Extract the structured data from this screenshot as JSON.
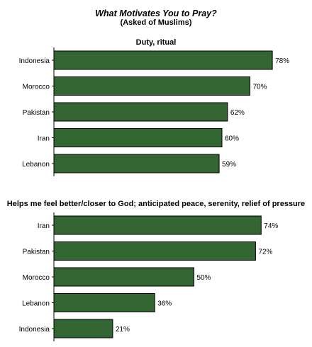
{
  "title": "What Motivates You to Pray?",
  "subtitle": "(Asked of Muslims)",
  "colors": {
    "bar": "#336633",
    "bar_stroke": "#000000",
    "axis": "#000000"
  },
  "chart_data": [
    {
      "type": "bar",
      "orientation": "horizontal",
      "title": "Duty, ritual",
      "categories": [
        "Indonesia",
        "Morocco",
        "Pakistan",
        "Iran",
        "Lebanon"
      ],
      "values": [
        78,
        70,
        62,
        60,
        59
      ],
      "value_labels": [
        "78%",
        "70%",
        "62%",
        "60%",
        "59%"
      ],
      "unit": "%",
      "xlim": [
        0,
        100
      ]
    },
    {
      "type": "bar",
      "orientation": "horizontal",
      "title": "Helps me feel better/closer to God; anticipated peace, serenity, relief of pressure",
      "categories": [
        "Iran",
        "Pakistan",
        "Morocco",
        "Lebanon",
        "Indonesia"
      ],
      "values": [
        74,
        72,
        50,
        36,
        21
      ],
      "value_labels": [
        "74%",
        "72%",
        "50%",
        "36%",
        "21%"
      ],
      "unit": "%",
      "xlim": [
        0,
        100
      ]
    }
  ]
}
